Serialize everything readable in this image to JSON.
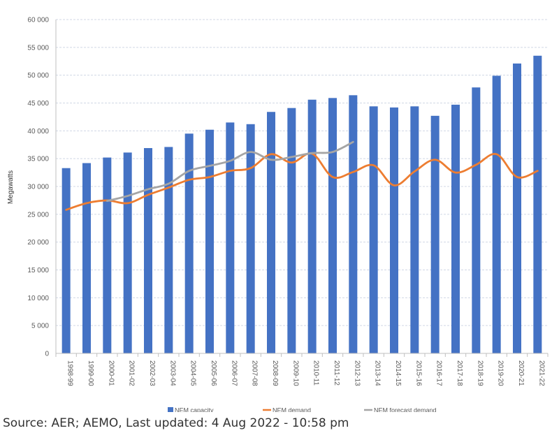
{
  "chart_data": {
    "type": "bar",
    "categories": [
      "1998-99",
      "1999-00",
      "2000-01",
      "2001-02",
      "2002-03",
      "2003-04",
      "2004-05",
      "2005-06",
      "2006-07",
      "2007-08",
      "2008-09",
      "2009-10",
      "2010-11",
      "2011-12",
      "2012-13",
      "2013-14",
      "2014-15",
      "2015-16",
      "2016-17",
      "2017-18",
      "2018-19",
      "2019-20",
      "2020-21",
      "2021-22"
    ],
    "ylabel": "Megawatts",
    "ylim": [
      0,
      60000
    ],
    "yticks": [
      0,
      5000,
      10000,
      15000,
      20000,
      25000,
      30000,
      35000,
      40000,
      45000,
      50000,
      55000,
      60000
    ],
    "ytick_labels": [
      "0",
      "5 000",
      "10 000",
      "15 000",
      "20 000",
      "25 000",
      "30 000",
      "35 000",
      "40 000",
      "45 000",
      "50 000",
      "55 000",
      "60 000"
    ],
    "grid": true,
    "legend_position": "bottom",
    "series": [
      {
        "name": "NEM capacity",
        "kind": "bar",
        "color": "#4472C4",
        "values": [
          33300,
          34200,
          35200,
          36100,
          36900,
          37100,
          39500,
          40200,
          41500,
          41200,
          43400,
          44100,
          45600,
          45900,
          46400,
          44400,
          44200,
          44400,
          42700,
          44700,
          47800,
          49900,
          52100,
          53500
        ]
      },
      {
        "name": "NEM demand",
        "kind": "line",
        "color": "#ED7D31",
        "values": [
          25800,
          27000,
          27500,
          27000,
          28500,
          29800,
          31200,
          31700,
          32800,
          33300,
          35800,
          34300,
          35900,
          31700,
          32600,
          33800,
          30200,
          32700,
          34800,
          32500,
          33900,
          35800,
          31700,
          32800
        ]
      },
      {
        "name": "NEM forecast demand",
        "kind": "line",
        "color": "#A5A5A5",
        "values": [
          null,
          null,
          27400,
          28300,
          29500,
          30500,
          32800,
          33700,
          34600,
          36200,
          34800,
          35300,
          36000,
          36200,
          38000,
          null,
          null,
          null,
          null,
          null,
          null,
          null,
          null,
          null
        ]
      }
    ]
  },
  "source": "Source: AER; AEMO, Last updated: 4 Aug 2022 - 10:58 pm"
}
